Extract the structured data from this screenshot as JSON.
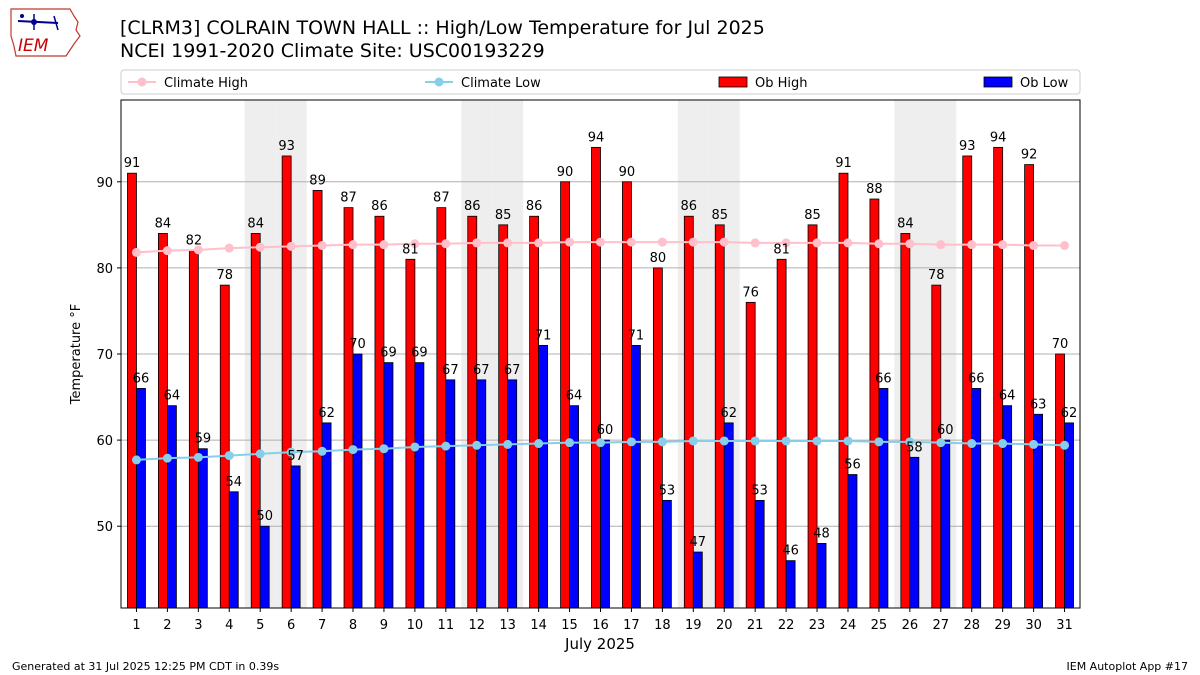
{
  "header": {
    "title_line1": "[CLRM3] COLRAIN TOWN HALL :: High/Low Temperature for Jul 2025",
    "title_line2": "NCEI 1991-2020 Climate Site: USC00193229",
    "logo_text": "IEM"
  },
  "footer": {
    "left": "Generated at 31 Jul 2025 12:25 PM CDT in 0.39s",
    "right": "IEM Autoplot App #17"
  },
  "colors": {
    "ob_high": "#ff0000",
    "ob_low": "#0000ff",
    "climate_high": "#ffc0cb",
    "climate_low": "#87ceeb",
    "weekend_band": "#eeeeee",
    "grid": "#b0b0b0"
  },
  "chart_data": {
    "type": "bar",
    "xlabel": "July 2025",
    "ylabel": "Temperature °F",
    "ylim": [
      40.5,
      99.5
    ],
    "yticks": [
      50,
      60,
      70,
      80,
      90
    ],
    "grid": "horizontal",
    "legend_placement": "top, above plot",
    "categories": [
      1,
      2,
      3,
      4,
      5,
      6,
      7,
      8,
      9,
      10,
      11,
      12,
      13,
      14,
      15,
      16,
      17,
      18,
      19,
      20,
      21,
      22,
      23,
      24,
      25,
      26,
      27,
      28,
      29,
      30,
      31
    ],
    "shaded_days": [
      5,
      6,
      12,
      13,
      19,
      20,
      26,
      27
    ],
    "series": [
      {
        "name": "Ob High",
        "kind": "bar",
        "values": [
          91,
          84,
          82,
          78,
          84,
          93,
          89,
          87,
          86,
          81,
          87,
          86,
          85,
          86,
          90,
          94,
          90,
          80,
          86,
          85,
          76,
          81,
          85,
          91,
          88,
          84,
          78,
          93,
          94,
          92,
          70
        ]
      },
      {
        "name": "Ob Low",
        "kind": "bar",
        "values": [
          66,
          64,
          59,
          54,
          50,
          57,
          62,
          70,
          69,
          69,
          67,
          67,
          67,
          71,
          64,
          60,
          71,
          53,
          47,
          62,
          53,
          46,
          48,
          56,
          66,
          58,
          60,
          66,
          64,
          63,
          62
        ]
      },
      {
        "name": "Climate High",
        "kind": "line",
        "values": [
          81.8,
          82.0,
          82.1,
          82.3,
          82.4,
          82.5,
          82.6,
          82.7,
          82.7,
          82.8,
          82.8,
          82.9,
          82.9,
          82.9,
          83.0,
          83.0,
          83.0,
          83.0,
          83.0,
          83.0,
          82.9,
          82.9,
          82.9,
          82.9,
          82.8,
          82.8,
          82.7,
          82.7,
          82.7,
          82.6,
          82.6
        ]
      },
      {
        "name": "Climate Low",
        "kind": "line",
        "values": [
          57.7,
          57.9,
          58.0,
          58.2,
          58.4,
          58.6,
          58.7,
          58.9,
          59.0,
          59.2,
          59.3,
          59.4,
          59.5,
          59.6,
          59.7,
          59.7,
          59.8,
          59.8,
          59.9,
          59.9,
          59.9,
          59.9,
          59.9,
          59.9,
          59.8,
          59.8,
          59.7,
          59.6,
          59.6,
          59.5,
          59.4
        ]
      }
    ]
  }
}
